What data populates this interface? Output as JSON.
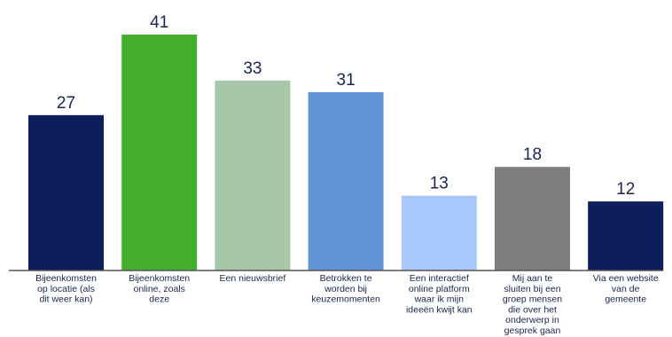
{
  "chart_data": {
    "type": "bar",
    "categories": [
      [
        "Bijeenkomsten",
        "op locatie (als",
        "dit weer kan)"
      ],
      [
        "Bijeenkomsten",
        "online, zoals",
        "deze"
      ],
      [
        "Een nieuwsbrief"
      ],
      [
        "Betrokken te",
        "worden bij",
        "keuzemomenten"
      ],
      [
        "Een interactief",
        "online platform",
        "waar ik mijn",
        "ideeën kwijt kan"
      ],
      [
        "Mij aan te",
        "sluiten bij een",
        "groep mensen",
        "die over het",
        "onderwerp in",
        "gesprek gaan"
      ],
      [
        "Via een website",
        "van de",
        "gemeente"
      ]
    ],
    "values": [
      27,
      41,
      33,
      31,
      13,
      18,
      12
    ],
    "colors": [
      "#0d1f5a",
      "#45b02e",
      "#a6c7a8",
      "#6194d4",
      "#a8c7fa",
      "#7d7d7d",
      "#0d1f5a"
    ],
    "ylim": [
      0,
      45
    ],
    "axis_color": "#555555",
    "text_color": "#1a2550",
    "grid": false
  }
}
